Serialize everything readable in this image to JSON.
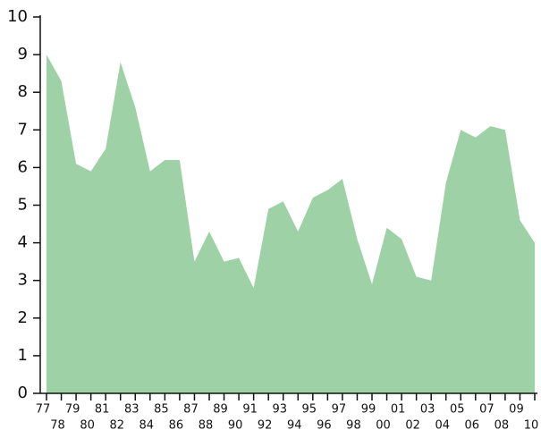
{
  "chart_data": {
    "type": "area",
    "categories": [
      "77",
      "78",
      "79",
      "80",
      "81",
      "82",
      "83",
      "84",
      "85",
      "86",
      "87",
      "88",
      "89",
      "90",
      "91",
      "92",
      "93",
      "94",
      "95",
      "96",
      "97",
      "98",
      "99",
      "00",
      "01",
      "02",
      "03",
      "04",
      "05",
      "06",
      "07",
      "08",
      "09",
      "10"
    ],
    "values": [
      9.0,
      8.3,
      6.1,
      5.9,
      6.5,
      8.8,
      7.6,
      5.9,
      6.2,
      6.2,
      3.5,
      4.3,
      3.5,
      3.6,
      2.8,
      4.9,
      5.1,
      4.3,
      5.2,
      5.4,
      5.7,
      4.1,
      2.9,
      4.4,
      4.1,
      3.1,
      3.0,
      5.6,
      7.0,
      6.8,
      7.1,
      7.0,
      4.6,
      4.0
    ],
    "color": "#9ed2a6",
    "ylim": [
      0,
      10
    ],
    "yticks": [
      0,
      1,
      2,
      3,
      4,
      5,
      6,
      7,
      8,
      9,
      10
    ]
  }
}
